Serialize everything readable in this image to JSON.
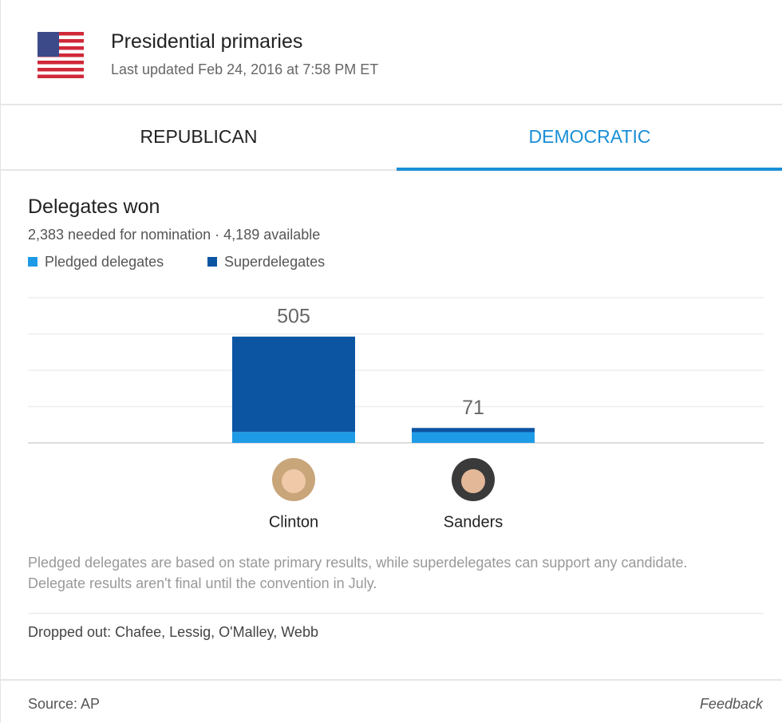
{
  "header": {
    "title": "Presidential primaries",
    "subtitle": "Last updated Feb 24, 2016 at 7:58 PM ET"
  },
  "tabs": [
    "REPUBLICAN",
    "DEMOCRATIC"
  ],
  "chart_data": {
    "type": "stacked-bar",
    "title": "Delegates won",
    "subtitle": "2,383 needed for nomination · 4,189 available",
    "categories": [
      "Clinton",
      "Sanders"
    ],
    "series": [
      {
        "name": "Pledged delegates",
        "color": "#1e9be6",
        "values": [
          52,
          51
        ]
      },
      {
        "name": "Superdelegates",
        "color": "#0b55a3",
        "values": [
          453,
          20
        ]
      }
    ],
    "totals": [
      505,
      71
    ],
    "ylim": [
      0,
      690
    ]
  },
  "note": "Pledged delegates are based on state primary results, while superdelegates can support any candidate. Delegate results aren't final until the convention in July.",
  "dropped_out": "Dropped out: Chafee, Lessig, O'Malley, Webb",
  "footer": {
    "source": "Source: AP",
    "feedback": "Feedback"
  }
}
